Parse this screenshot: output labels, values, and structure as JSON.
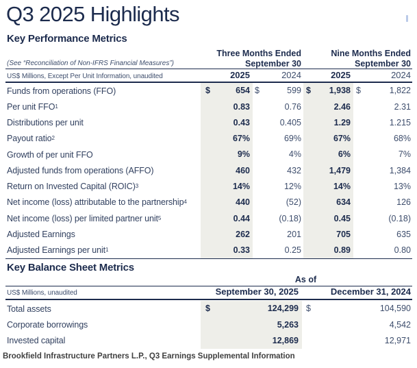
{
  "page": {
    "title": "Q3 2025 Highlights",
    "footer": "Brookfield Infrastructure Partners L.P., Q3 Earnings Supplemental Information"
  },
  "colors": {
    "navy": "#1C2B4D",
    "navy_mid": "#3D4D6C",
    "navy_label": "#31405F",
    "shade": "#EEEEE9",
    "footer_text": "#404040"
  },
  "key_performance_metrics": {
    "section_title": "Key Performance Metrics",
    "note": "(See “Reconciliation of Non-IFRS Financial Measures”)",
    "unit_note": "US$ Millions, Except Per Unit Information, unaudited",
    "column_groups": [
      {
        "line1": "Three Months Ended",
        "line2": "September 30"
      },
      {
        "line1": "Nine Months Ended",
        "line2": "September 30"
      }
    ],
    "year_headers": [
      "2025",
      "2024",
      "2025",
      "2024"
    ],
    "rows": [
      {
        "label": "Funds from operations (FFO)",
        "sup": "",
        "dollar": true,
        "values": [
          "654",
          "599",
          "1,938",
          "1,822"
        ]
      },
      {
        "label": "Per unit FFO",
        "sup": "1",
        "dollar": false,
        "values": [
          "0.83",
          "0.76",
          "2.46",
          "2.31"
        ]
      },
      {
        "label": "Distributions per unit",
        "sup": "",
        "dollar": false,
        "values": [
          "0.43",
          "0.405",
          "1.29",
          "1.215"
        ]
      },
      {
        "label": "Payout ratio",
        "sup": "2",
        "dollar": false,
        "values": [
          "67%",
          "69%",
          "67%",
          "68%"
        ]
      },
      {
        "label": "Growth of per unit FFO",
        "sup": "",
        "dollar": false,
        "values": [
          "9%",
          "4%",
          "6%",
          "7%"
        ]
      },
      {
        "label": "Adjusted funds from operations (AFFO)",
        "sup": "",
        "dollar": false,
        "values": [
          "460",
          "432",
          "1,479",
          "1,384"
        ]
      },
      {
        "label": "Return on Invested Capital (ROIC)",
        "sup": "3",
        "dollar": false,
        "values": [
          "14%",
          "12%",
          "14%",
          "13%"
        ]
      },
      {
        "label": "Net income (loss) attributable to the partnership",
        "sup": "4",
        "dollar": false,
        "values": [
          "440",
          "(52)",
          "634",
          "126"
        ]
      },
      {
        "label": "Net income (loss) per limited partner unit",
        "sup": "5",
        "dollar": false,
        "values": [
          "0.44",
          "(0.18)",
          "0.45",
          "(0.18)"
        ]
      },
      {
        "label": "Adjusted Earnings",
        "sup": "",
        "dollar": false,
        "values": [
          "262",
          "201",
          "705",
          "635"
        ]
      },
      {
        "label": "Adjusted Earnings per unit",
        "sup": "1",
        "dollar": false,
        "values": [
          "0.33",
          "0.25",
          "0.89",
          "0.80"
        ]
      }
    ]
  },
  "key_balance_sheet_metrics": {
    "section_title": "Key Balance Sheet Metrics",
    "as_of_label": "As of",
    "unit_note": "US$ Millions, unaudited",
    "column_headers": [
      "September 30, 2025",
      "December 31, 2024"
    ],
    "rows": [
      {
        "label": "Total assets",
        "dollar": true,
        "values": [
          "124,299",
          "104,590"
        ]
      },
      {
        "label": "Corporate borrowings",
        "dollar": false,
        "values": [
          "5,263",
          "4,542"
        ]
      },
      {
        "label": "Invested capital",
        "dollar": false,
        "values": [
          "12,869",
          "12,971"
        ]
      }
    ]
  }
}
